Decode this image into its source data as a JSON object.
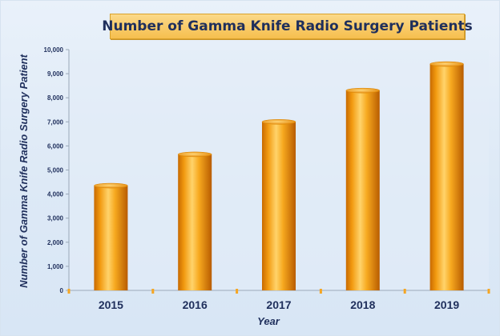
{
  "chart_data": {
    "type": "bar",
    "title": "Number of Gamma Knife Radio Surgery Patients",
    "xlabel": "Year",
    "ylabel": "Number of Gamma  Knife Radio Surgery Patient",
    "categories": [
      "2015",
      "2016",
      "2017",
      "2018",
      "2019"
    ],
    "values": [
      4350,
      5650,
      7000,
      8300,
      9400
    ],
    "ylim": [
      0,
      10000
    ],
    "yticks": [
      "0",
      "1,000",
      "2,000",
      "3,000",
      "4,000",
      "5,000",
      "6,000",
      "7,000",
      "8,000",
      "9,000",
      "10,000"
    ],
    "grid": false,
    "legend": "none",
    "bar_color": "#f5a623",
    "title_box_color": "#f6bf4e",
    "background_color": "#e4eef9",
    "text_color": "#1f2f5c"
  }
}
